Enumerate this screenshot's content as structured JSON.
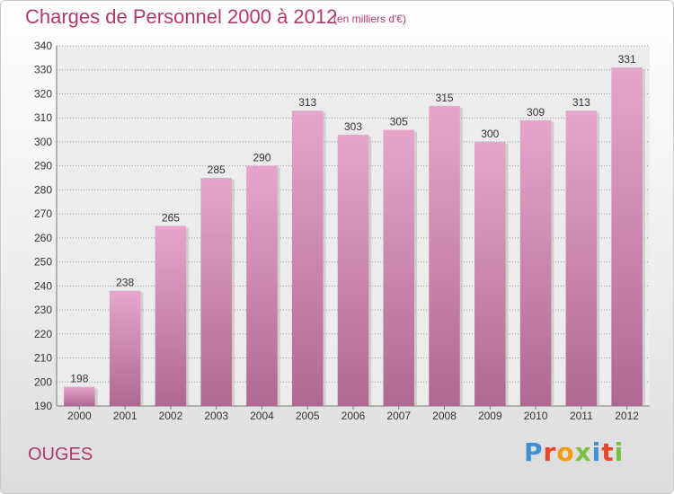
{
  "header": {
    "title": "Charges de Personnel 2000 à 2012",
    "unit": "(en milliers d'€)"
  },
  "footer": {
    "commune": "OUGES",
    "brand": "Proxiti",
    "brand_colors": [
      "#3d8fd6",
      "#e8452c",
      "#f39c12",
      "#7ac143",
      "#3d8fd6",
      "#e8452c",
      "#7ac143"
    ]
  },
  "chart_data": {
    "type": "bar",
    "title": "Charges de Personnel 2000 à 2012",
    "subtitle": "(en milliers d'€)",
    "categories": [
      "2000",
      "2001",
      "2002",
      "2003",
      "2004",
      "2005",
      "2006",
      "2007",
      "2008",
      "2009",
      "2010",
      "2011",
      "2012"
    ],
    "values": [
      198,
      238,
      265,
      285,
      290,
      313,
      303,
      305,
      315,
      300,
      309,
      313,
      331
    ],
    "ylim": [
      190,
      340
    ],
    "yticks": [
      190,
      200,
      210,
      220,
      230,
      240,
      250,
      260,
      270,
      280,
      290,
      300,
      310,
      320,
      330,
      340
    ],
    "grid": "horizontal-dotted",
    "bar_color_top": "#e6a6cc",
    "bar_color_bottom": "#b06892"
  }
}
